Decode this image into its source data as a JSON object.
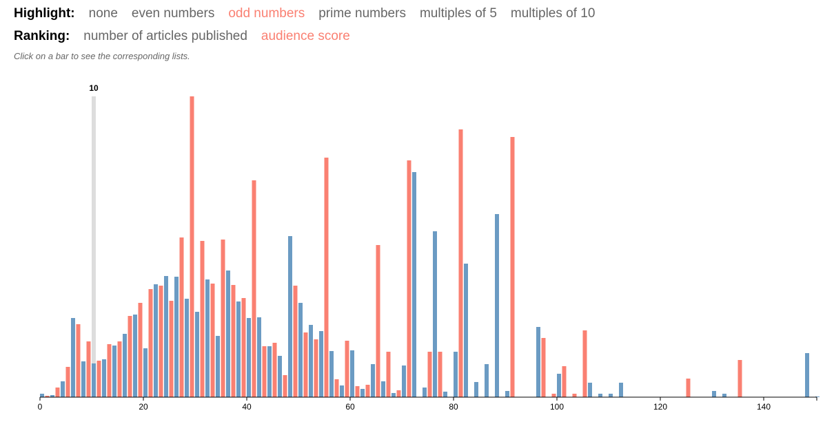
{
  "controls": {
    "highlight": {
      "label": "Highlight:",
      "options": [
        "none",
        "even numbers",
        "odd numbers",
        "prime numbers",
        "multiples of 5",
        "multiples of 10"
      ],
      "selected": 2
    },
    "ranking": {
      "label": "Ranking:",
      "options": [
        "number of articles published",
        "audience score"
      ],
      "selected": 1
    },
    "note": "Click on a bar to see the corresponding lists."
  },
  "chart_data": {
    "type": "bar",
    "x": [
      0,
      1,
      2,
      3,
      4,
      5,
      6,
      7,
      8,
      9,
      10,
      11,
      12,
      13,
      14,
      15,
      16,
      17,
      18,
      19,
      20,
      21,
      22,
      23,
      24,
      25,
      26,
      27,
      28,
      29,
      30,
      31,
      32,
      33,
      34,
      35,
      36,
      37,
      38,
      39,
      40,
      41,
      42,
      43,
      44,
      45,
      46,
      47,
      48,
      49,
      50,
      51,
      52,
      53,
      54,
      55,
      56,
      57,
      58,
      59,
      60,
      61,
      62,
      63,
      64,
      65,
      66,
      67,
      68,
      69,
      70,
      71,
      72,
      73,
      74,
      75,
      76,
      77,
      78,
      79,
      80,
      81,
      82,
      83,
      84,
      85,
      86,
      87,
      88,
      89,
      90,
      91,
      92,
      93,
      94,
      95,
      96,
      97,
      98,
      99,
      100,
      101,
      102,
      103,
      104,
      105,
      106,
      107,
      108,
      109,
      110,
      111,
      112,
      113,
      114,
      115,
      116,
      117,
      118,
      119,
      120,
      121,
      122,
      123,
      124,
      125,
      126,
      127,
      128,
      129,
      130,
      131,
      132,
      133,
      134,
      135,
      136,
      137,
      138,
      139,
      140,
      141,
      142,
      143,
      144,
      145,
      146,
      147,
      148,
      149,
      150
    ],
    "values": [
      5,
      2,
      3,
      14,
      23,
      44,
      115,
      106,
      52,
      81,
      49,
      53,
      55,
      77,
      75,
      81,
      92,
      118,
      120,
      137,
      71,
      157,
      164,
      162,
      176,
      140,
      175,
      232,
      143,
      437,
      124,
      227,
      171,
      165,
      89,
      229,
      184,
      163,
      139,
      144,
      115,
      315,
      116,
      74,
      74,
      79,
      60,
      32,
      234,
      162,
      137,
      94,
      105,
      84,
      96,
      348,
      67,
      26,
      17,
      82,
      68,
      16,
      12,
      18,
      48,
      221,
      23,
      66,
      6,
      10,
      46,
      344,
      327,
      0,
      14,
      66,
      241,
      66,
      8,
      0,
      66,
      389,
      194,
      0,
      22,
      0,
      48,
      0,
      266,
      0,
      9,
      378,
      0,
      0,
      0,
      0,
      102,
      86,
      0,
      5,
      34,
      45,
      0,
      5,
      0,
      97,
      21,
      0,
      5,
      0,
      5,
      0,
      21,
      0,
      0,
      0,
      0,
      0,
      0,
      0,
      0,
      0,
      0,
      0,
      0,
      27,
      0,
      0,
      0,
      0,
      9,
      0,
      5,
      0,
      0,
      54,
      0,
      0,
      0,
      0,
      0,
      0,
      0,
      0,
      0,
      0,
      0,
      0,
      64,
      0,
      1
    ],
    "base_color": "#6b9bc3",
    "highlight_color": "#fa8072",
    "selected_color": "#dddddd",
    "selected": 10,
    "xlim": [
      0,
      150
    ],
    "xticks": [
      0,
      20,
      40,
      60,
      80,
      100,
      120,
      140
    ],
    "ylim": [
      0,
      440
    ]
  }
}
